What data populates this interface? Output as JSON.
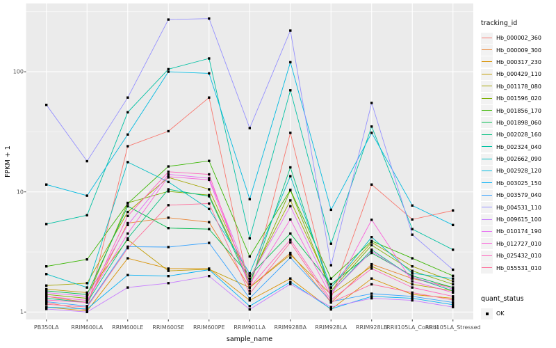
{
  "chart_data": {
    "type": "line",
    "title": "",
    "xlabel": "sample_name",
    "ylabel": "FPKM + 1",
    "x_categories": [
      "PB350LA",
      "RRIM600LA",
      "RRIM600LE",
      "RRIM600SE",
      "RRIM600PE",
      "RRIM901LA",
      "RRIM928BA",
      "RRIM928LA",
      "RRIM928LB",
      "RRII105LA_Control",
      "RRII105LA_Stressed"
    ],
    "y_scale": "log10",
    "y_ticks": [
      1,
      10,
      100
    ],
    "y_tick_labels": [
      "1",
      "10",
      "100"
    ],
    "y_minor_ticks": [
      3.162,
      31.62,
      316.2
    ],
    "ylim": [
      0.87,
      371
    ],
    "grid": true,
    "legend_position": "right",
    "marker": "black-square",
    "series": [
      {
        "name": "Hb_000002_360",
        "color": "#F8766D",
        "values": [
          1.2,
          1.04,
          24,
          32,
          61,
          1.5,
          31,
          1.3,
          11.5,
          5.9,
          7.0
        ]
      },
      {
        "name": "Hb_000009_300",
        "color": "#EA8331",
        "values": [
          1.35,
          1.2,
          5.5,
          6.1,
          5.6,
          1.6,
          3.1,
          1.2,
          2.5,
          1.9,
          1.6
        ]
      },
      {
        "name": "Hb_000317_230",
        "color": "#D89000",
        "values": [
          1.1,
          1.02,
          2.8,
          2.3,
          2.3,
          1.25,
          1.9,
          1.05,
          1.9,
          1.4,
          1.3
        ]
      },
      {
        "name": "Hb_000429_110",
        "color": "#C09B00",
        "values": [
          1.55,
          1.45,
          4.0,
          2.2,
          2.27,
          1.6,
          3.0,
          1.4,
          2.4,
          1.7,
          1.5
        ]
      },
      {
        "name": "Hb_001178_080",
        "color": "#A3A500",
        "values": [
          1.66,
          1.74,
          6.8,
          13.2,
          10.5,
          1.9,
          8.5,
          1.6,
          3.8,
          2.4,
          1.8
        ]
      },
      {
        "name": "Hb_001596_020",
        "color": "#7CAE00",
        "values": [
          1.4,
          1.3,
          8.1,
          10.1,
          9.4,
          1.8,
          10.3,
          1.5,
          3.6,
          2.2,
          1.7
        ]
      },
      {
        "name": "Hb_001856_170",
        "color": "#39B600",
        "values": [
          2.4,
          2.74,
          8.0,
          16.3,
          18.1,
          2.9,
          10.4,
          1.9,
          3.9,
          2.8,
          2.0
        ]
      },
      {
        "name": "Hb_001898_060",
        "color": "#00BB4E",
        "values": [
          1.5,
          1.4,
          7.6,
          5.0,
          4.9,
          2.0,
          4.5,
          1.7,
          3.1,
          2.0,
          1.6
        ]
      },
      {
        "name": "Hb_002028_160",
        "color": "#00BF7D",
        "values": [
          1.3,
          1.2,
          4.1,
          10.5,
          9.2,
          1.7,
          16.0,
          1.45,
          3.3,
          1.95,
          1.5
        ]
      },
      {
        "name": "Hb_002324_040",
        "color": "#00C1A3",
        "values": [
          5.4,
          6.4,
          46,
          105,
          129,
          4.1,
          70,
          3.7,
          35,
          4.9,
          3.3
        ]
      },
      {
        "name": "Hb_002662_090",
        "color": "#00BFC4",
        "values": [
          2.07,
          1.6,
          17.7,
          12.1,
          7.2,
          2.1,
          13.5,
          1.6,
          4.2,
          2.1,
          1.9
        ]
      },
      {
        "name": "Hb_002928_120",
        "color": "#00BAE0",
        "values": [
          11.5,
          9.3,
          30,
          100,
          97,
          8.7,
          120,
          7.1,
          31,
          7.7,
          5.3
        ]
      },
      {
        "name": "Hb_003025_150",
        "color": "#00B0F6",
        "values": [
          1.1,
          1.06,
          2.03,
          1.99,
          2.25,
          1.12,
          1.78,
          1.06,
          1.35,
          1.3,
          1.15
        ]
      },
      {
        "name": "Hb_003579_040",
        "color": "#35A2FF",
        "values": [
          1.22,
          1.12,
          3.5,
          3.47,
          3.76,
          1.3,
          2.84,
          1.22,
          1.42,
          1.35,
          1.2
        ]
      },
      {
        "name": "Hb_004531_110",
        "color": "#9590FF",
        "values": [
          53,
          18,
          61,
          272,
          277,
          34,
          220,
          2.45,
          55,
          4.4,
          2.25
        ]
      },
      {
        "name": "Hb_009615_100",
        "color": "#C77CFF",
        "values": [
          1.06,
          1.0,
          1.6,
          1.74,
          1.99,
          1.05,
          1.71,
          1.1,
          1.3,
          1.25,
          1.1
        ]
      },
      {
        "name": "Hb_010174_190",
        "color": "#E76BF3",
        "values": [
          1.45,
          1.35,
          5.3,
          14.0,
          13.0,
          1.9,
          7.6,
          1.45,
          3.2,
          1.95,
          1.55
        ]
      },
      {
        "name": "Hb_012727_010",
        "color": "#FA62DB",
        "values": [
          1.35,
          1.25,
          4.5,
          13.4,
          12.6,
          1.7,
          5.9,
          1.35,
          5.86,
          1.8,
          1.45
        ]
      },
      {
        "name": "Hb_025432_010",
        "color": "#FF62BC",
        "values": [
          1.26,
          1.2,
          6.3,
          14.7,
          14.0,
          1.6,
          4.0,
          1.26,
          2.3,
          1.6,
          1.35
        ]
      },
      {
        "name": "Hb_055531_010",
        "color": "#FF6A98",
        "values": [
          1.16,
          1.1,
          3.4,
          7.75,
          8.0,
          1.42,
          3.8,
          1.2,
          1.7,
          1.45,
          1.26
        ]
      }
    ]
  },
  "legend": {
    "title": "tracking_id"
  },
  "legend2": {
    "title": "quant_status",
    "items": [
      {
        "label": "OK"
      }
    ]
  },
  "colors": {
    "panel_background": "#EBEBEB",
    "gridline": "#FFFFFF",
    "tick_text": "#4D4D4D",
    "axis_text": "#000000",
    "legend_key_background": "#F2F2F2",
    "marker": "#000000"
  }
}
